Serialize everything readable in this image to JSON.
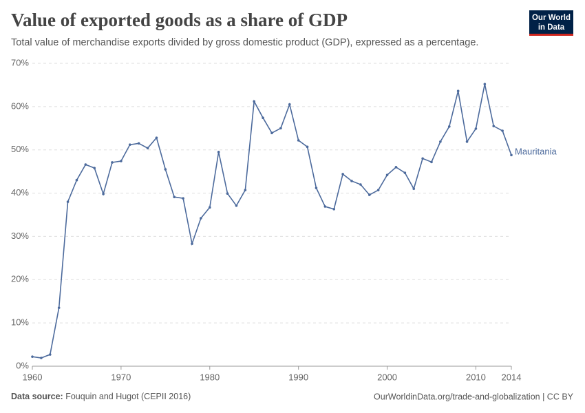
{
  "chart_data": {
    "type": "line",
    "title": "Value of exported goods as a share of GDP",
    "subtitle": "Total value of merchandise exports divided by gross domestic product (GDP), expressed as a percentage.",
    "source_label": "Data source:",
    "source": "Fouquin and Hugot (CEPII 2016)",
    "footer_right": "OurWorldinData.org/trade-and-globalization | CC BY",
    "logo": [
      "Our World",
      "in Data"
    ],
    "x": [
      1960,
      1961,
      1962,
      1963,
      1964,
      1965,
      1966,
      1967,
      1968,
      1969,
      1970,
      1971,
      1972,
      1973,
      1974,
      1975,
      1976,
      1977,
      1978,
      1979,
      1980,
      1981,
      1982,
      1983,
      1984,
      1985,
      1986,
      1987,
      1988,
      1989,
      1990,
      1991,
      1992,
      1993,
      1994,
      1995,
      1996,
      1997,
      1998,
      1999,
      2000,
      2001,
      2002,
      2003,
      2004,
      2005,
      2006,
      2007,
      2008,
      2009,
      2010,
      2011,
      2012,
      2013,
      2014
    ],
    "series": [
      {
        "name": "Mauritania",
        "color": "#4c6a9c",
        "values": [
          2.2,
          1.9,
          2.7,
          13.5,
          38.0,
          43.0,
          46.6,
          45.8,
          39.8,
          47.1,
          47.4,
          51.2,
          51.5,
          50.4,
          52.8,
          45.5,
          39.1,
          38.8,
          28.3,
          34.2,
          36.7,
          49.5,
          39.9,
          37.1,
          40.7,
          61.2,
          57.4,
          53.9,
          55.0,
          60.5,
          52.2,
          50.7,
          41.2,
          36.9,
          36.3,
          44.4,
          42.8,
          42.0,
          39.6,
          40.7,
          44.2,
          46.0,
          44.7,
          41.0,
          48.0,
          47.2,
          51.9,
          55.4,
          63.6,
          51.9,
          54.9,
          65.2,
          55.5,
          54.4,
          48.8
        ]
      }
    ],
    "xlim": [
      1960,
      2014
    ],
    "xticks": [
      1960,
      1970,
      1980,
      1990,
      2000,
      2010,
      2014
    ],
    "ylim": [
      0,
      70
    ],
    "yticks": [
      {
        "value": 0,
        "label": "0%"
      },
      {
        "value": 10,
        "label": "10%"
      },
      {
        "value": 20,
        "label": "20%"
      },
      {
        "value": 30,
        "label": "30%"
      },
      {
        "value": 40,
        "label": "40%"
      },
      {
        "value": 50,
        "label": "50%"
      },
      {
        "value": 60,
        "label": "60%"
      },
      {
        "value": 70,
        "label": "70%"
      }
    ],
    "grid": true
  }
}
